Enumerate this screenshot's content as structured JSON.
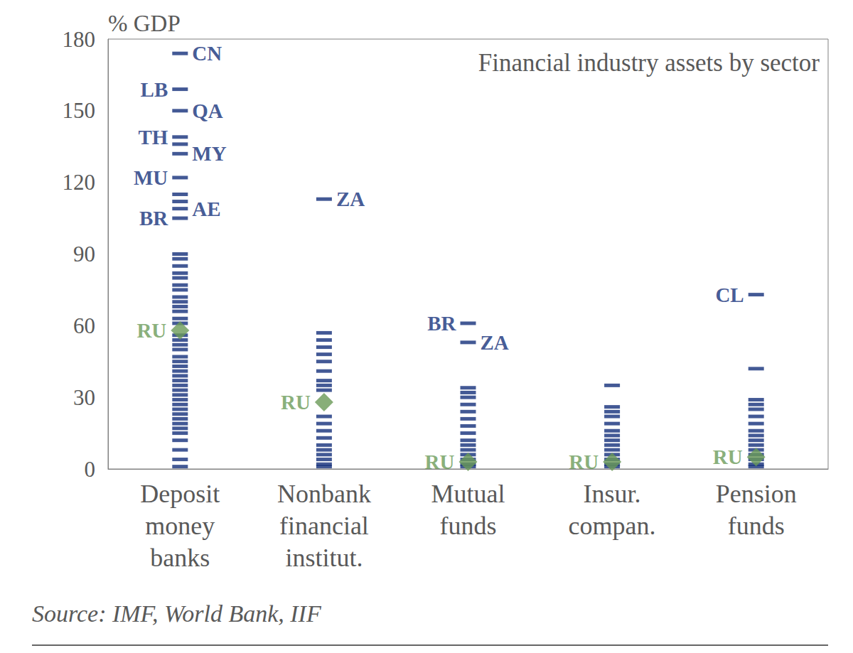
{
  "chart_data": {
    "type": "scatter",
    "title": "Financial industry assets by sector",
    "y_label": "% GDP",
    "source": "Source: IMF, World Bank, IIF",
    "categories": [
      "Deposit\nmoney\nbanks",
      "Nonbank\nfinancial\ninstitut.",
      "Mutual\nfunds",
      "Insur.\ncompan.",
      "Pension\nfunds"
    ],
    "ylim": [
      0,
      180
    ],
    "yticks": [
      0,
      30,
      60,
      90,
      120,
      150,
      180
    ],
    "grid": false,
    "series": [
      {
        "marker": "dash",
        "color": "#14307a",
        "points": [
          {
            "category": "Deposit\nmoney\nbanks",
            "y": 174,
            "label": "CN"
          },
          {
            "category": "Deposit\nmoney\nbanks",
            "y": 159,
            "label": "LB"
          },
          {
            "category": "Deposit\nmoney\nbanks",
            "y": 150,
            "label": "QA"
          },
          {
            "category": "Deposit\nmoney\nbanks",
            "y": 139,
            "label": "TH"
          },
          {
            "category": "Deposit\nmoney\nbanks",
            "y": 132,
            "label": "MY"
          },
          {
            "category": "Deposit\nmoney\nbanks",
            "y": 122,
            "label": "MU"
          },
          {
            "category": "Deposit\nmoney\nbanks",
            "y": 109,
            "label": "AE"
          },
          {
            "category": "Deposit\nmoney\nbanks",
            "y": 105,
            "label": "BR"
          },
          {
            "category": "Nonbank\nfinancial\ninstitut.",
            "y": 113,
            "label": "ZA"
          },
          {
            "category": "Mutual\nfunds",
            "y": 61,
            "label": "BR"
          },
          {
            "category": "Mutual\nfunds",
            "y": 53,
            "label": "ZA"
          },
          {
            "category": "Pension\nfunds",
            "y": 73,
            "label": "CL"
          },
          {
            "category": "Deposit\nmoney\nbanks",
            "y": 136
          },
          {
            "category": "Deposit\nmoney\nbanks",
            "y": 115
          },
          {
            "category": "Deposit\nmoney\nbanks",
            "y": 112
          },
          {
            "category": "Deposit\nmoney\nbanks",
            "y": 90
          },
          {
            "category": "Deposit\nmoney\nbanks",
            "y": 88
          },
          {
            "category": "Deposit\nmoney\nbanks",
            "y": 85
          },
          {
            "category": "Deposit\nmoney\nbanks",
            "y": 82
          },
          {
            "category": "Deposit\nmoney\nbanks",
            "y": 80
          },
          {
            "category": "Deposit\nmoney\nbanks",
            "y": 77
          },
          {
            "category": "Deposit\nmoney\nbanks",
            "y": 75
          },
          {
            "category": "Deposit\nmoney\nbanks",
            "y": 72
          },
          {
            "category": "Deposit\nmoney\nbanks",
            "y": 70
          },
          {
            "category": "Deposit\nmoney\nbanks",
            "y": 68
          },
          {
            "category": "Deposit\nmoney\nbanks",
            "y": 66
          },
          {
            "category": "Deposit\nmoney\nbanks",
            "y": 63
          },
          {
            "category": "Deposit\nmoney\nbanks",
            "y": 61
          },
          {
            "category": "Deposit\nmoney\nbanks",
            "y": 56
          },
          {
            "category": "Deposit\nmoney\nbanks",
            "y": 54
          },
          {
            "category": "Deposit\nmoney\nbanks",
            "y": 52
          },
          {
            "category": "Deposit\nmoney\nbanks",
            "y": 50
          },
          {
            "category": "Deposit\nmoney\nbanks",
            "y": 47
          },
          {
            "category": "Deposit\nmoney\nbanks",
            "y": 45
          },
          {
            "category": "Deposit\nmoney\nbanks",
            "y": 43
          },
          {
            "category": "Deposit\nmoney\nbanks",
            "y": 41
          },
          {
            "category": "Deposit\nmoney\nbanks",
            "y": 39
          },
          {
            "category": "Deposit\nmoney\nbanks",
            "y": 37
          },
          {
            "category": "Deposit\nmoney\nbanks",
            "y": 35
          },
          {
            "category": "Deposit\nmoney\nbanks",
            "y": 33
          },
          {
            "category": "Deposit\nmoney\nbanks",
            "y": 31
          },
          {
            "category": "Deposit\nmoney\nbanks",
            "y": 29
          },
          {
            "category": "Deposit\nmoney\nbanks",
            "y": 27
          },
          {
            "category": "Deposit\nmoney\nbanks",
            "y": 25
          },
          {
            "category": "Deposit\nmoney\nbanks",
            "y": 23
          },
          {
            "category": "Deposit\nmoney\nbanks",
            "y": 21
          },
          {
            "category": "Deposit\nmoney\nbanks",
            "y": 19
          },
          {
            "category": "Deposit\nmoney\nbanks",
            "y": 17
          },
          {
            "category": "Deposit\nmoney\nbanks",
            "y": 15
          },
          {
            "category": "Deposit\nmoney\nbanks",
            "y": 12
          },
          {
            "category": "Deposit\nmoney\nbanks",
            "y": 8
          },
          {
            "category": "Deposit\nmoney\nbanks",
            "y": 4
          },
          {
            "category": "Deposit\nmoney\nbanks",
            "y": 1
          },
          {
            "category": "Nonbank\nfinancial\ninstitut.",
            "y": 57
          },
          {
            "category": "Nonbank\nfinancial\ninstitut.",
            "y": 54
          },
          {
            "category": "Nonbank\nfinancial\ninstitut.",
            "y": 51
          },
          {
            "category": "Nonbank\nfinancial\ninstitut.",
            "y": 48
          },
          {
            "category": "Nonbank\nfinancial\ninstitut.",
            "y": 45
          },
          {
            "category": "Nonbank\nfinancial\ninstitut.",
            "y": 41
          },
          {
            "category": "Nonbank\nfinancial\ninstitut.",
            "y": 37
          },
          {
            "category": "Nonbank\nfinancial\ninstitut.",
            "y": 35
          },
          {
            "category": "Nonbank\nfinancial\ninstitut.",
            "y": 33
          },
          {
            "category": "Nonbank\nfinancial\ninstitut.",
            "y": 22
          },
          {
            "category": "Nonbank\nfinancial\ninstitut.",
            "y": 19
          },
          {
            "category": "Nonbank\nfinancial\ninstitut.",
            "y": 16
          },
          {
            "category": "Nonbank\nfinancial\ninstitut.",
            "y": 13
          },
          {
            "category": "Nonbank\nfinancial\ninstitut.",
            "y": 10
          },
          {
            "category": "Nonbank\nfinancial\ninstitut.",
            "y": 8
          },
          {
            "category": "Nonbank\nfinancial\ninstitut.",
            "y": 6
          },
          {
            "category": "Nonbank\nfinancial\ninstitut.",
            "y": 4
          },
          {
            "category": "Nonbank\nfinancial\ninstitut.",
            "y": 2
          },
          {
            "category": "Nonbank\nfinancial\ninstitut.",
            "y": 1
          },
          {
            "category": "Mutual\nfunds",
            "y": 34
          },
          {
            "category": "Mutual\nfunds",
            "y": 32
          },
          {
            "category": "Mutual\nfunds",
            "y": 30
          },
          {
            "category": "Mutual\nfunds",
            "y": 27
          },
          {
            "category": "Mutual\nfunds",
            "y": 24
          },
          {
            "category": "Mutual\nfunds",
            "y": 21
          },
          {
            "category": "Mutual\nfunds",
            "y": 18
          },
          {
            "category": "Mutual\nfunds",
            "y": 15
          },
          {
            "category": "Mutual\nfunds",
            "y": 12
          },
          {
            "category": "Mutual\nfunds",
            "y": 10
          },
          {
            "category": "Mutual\nfunds",
            "y": 8
          },
          {
            "category": "Mutual\nfunds",
            "y": 6
          },
          {
            "category": "Mutual\nfunds",
            "y": 4
          },
          {
            "category": "Mutual\nfunds",
            "y": 2
          },
          {
            "category": "Mutual\nfunds",
            "y": 1
          },
          {
            "category": "Insur.\ncompan.",
            "y": 35
          },
          {
            "category": "Insur.\ncompan.",
            "y": 26
          },
          {
            "category": "Insur.\ncompan.",
            "y": 24
          },
          {
            "category": "Insur.\ncompan.",
            "y": 22
          },
          {
            "category": "Insur.\ncompan.",
            "y": 19
          },
          {
            "category": "Insur.\ncompan.",
            "y": 16
          },
          {
            "category": "Insur.\ncompan.",
            "y": 14
          },
          {
            "category": "Insur.\ncompan.",
            "y": 12
          },
          {
            "category": "Insur.\ncompan.",
            "y": 10
          },
          {
            "category": "Insur.\ncompan.",
            "y": 8
          },
          {
            "category": "Insur.\ncompan.",
            "y": 6
          },
          {
            "category": "Insur.\ncompan.",
            "y": 4
          },
          {
            "category": "Insur.\ncompan.",
            "y": 2
          },
          {
            "category": "Insur.\ncompan.",
            "y": 1
          },
          {
            "category": "Pension\nfunds",
            "y": 42
          },
          {
            "category": "Pension\nfunds",
            "y": 29
          },
          {
            "category": "Pension\nfunds",
            "y": 27
          },
          {
            "category": "Pension\nfunds",
            "y": 25
          },
          {
            "category": "Pension\nfunds",
            "y": 22
          },
          {
            "category": "Pension\nfunds",
            "y": 19
          },
          {
            "category": "Pension\nfunds",
            "y": 16
          },
          {
            "category": "Pension\nfunds",
            "y": 14
          },
          {
            "category": "Pension\nfunds",
            "y": 12
          },
          {
            "category": "Pension\nfunds",
            "y": 10
          },
          {
            "category": "Pension\nfunds",
            "y": 8
          },
          {
            "category": "Pension\nfunds",
            "y": 6
          },
          {
            "category": "Pension\nfunds",
            "y": 4
          },
          {
            "category": "Pension\nfunds",
            "y": 2
          },
          {
            "category": "Pension\nfunds",
            "y": 1
          }
        ]
      },
      {
        "marker": "diamond",
        "color": "#6a9a58",
        "points": [
          {
            "category": "Deposit\nmoney\nbanks",
            "y": 58,
            "label": "RU"
          },
          {
            "category": "Nonbank\nfinancial\ninstitut.",
            "y": 28,
            "label": "RU"
          },
          {
            "category": "Mutual\nfunds",
            "y": 3,
            "label": "RU"
          },
          {
            "category": "Insur.\ncompan.",
            "y": 3,
            "label": "RU"
          },
          {
            "category": "Pension\nfunds",
            "y": 5,
            "label": "RU"
          }
        ]
      }
    ]
  }
}
